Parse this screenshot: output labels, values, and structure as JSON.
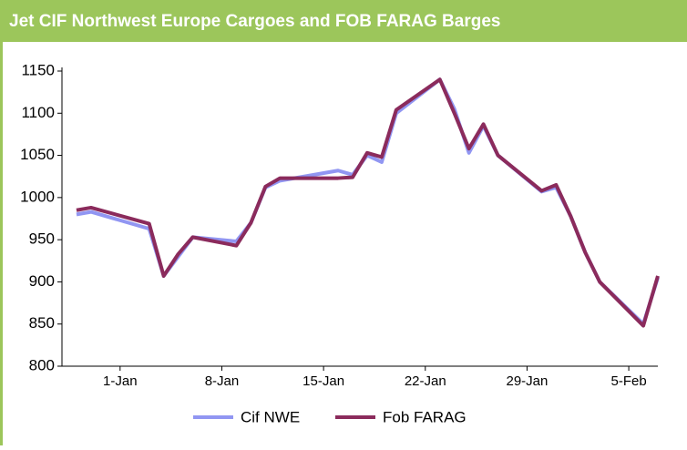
{
  "chart_data": {
    "type": "line",
    "title": "Jet CIF Northwest Europe Cargoes and FOB FARAG Barges",
    "x": [
      "29-Dec",
      "30-Dec",
      "3-Jan",
      "4-Jan",
      "5-Jan",
      "6-Jan",
      "9-Jan",
      "10-Jan",
      "11-Jan",
      "12-Jan",
      "16-Jan",
      "17-Jan",
      "18-Jan",
      "19-Jan",
      "20-Jan",
      "23-Jan",
      "24-Jan",
      "25-Jan",
      "26-Jan",
      "27-Jan",
      "30-Jan",
      "31-Jan",
      "1-Feb",
      "2-Feb",
      "3-Feb",
      "6-Feb",
      "7-Feb"
    ],
    "series": [
      {
        "name": "Cif NWE",
        "color": "#9196f2",
        "values": [
          980,
          983,
          963,
          907,
          930,
          953,
          948,
          970,
          1012,
          1020,
          1032,
          1027,
          1050,
          1042,
          1100,
          1140,
          1105,
          1053,
          1085,
          1050,
          1007,
          1012,
          978,
          935,
          900,
          850,
          905
        ]
      },
      {
        "name": "Fob FARAG",
        "color": "#8b2b5c",
        "values": [
          985,
          988,
          969,
          907,
          933,
          953,
          943,
          970,
          1013,
          1023,
          1023,
          1024,
          1053,
          1048,
          1104,
          1140,
          1100,
          1058,
          1087,
          1050,
          1008,
          1015,
          978,
          935,
          900,
          848,
          907
        ]
      }
    ],
    "xlim": [
      "28-Dec",
      "7-Feb"
    ],
    "xticks": [
      "1-Jan",
      "8-Jan",
      "15-Jan",
      "22-Jan",
      "29-Jan",
      "5-Feb"
    ],
    "ylim": [
      800,
      1150
    ],
    "yticks": [
      800,
      850,
      900,
      950,
      1000,
      1050,
      1100,
      1150
    ],
    "legend": "bottom"
  }
}
